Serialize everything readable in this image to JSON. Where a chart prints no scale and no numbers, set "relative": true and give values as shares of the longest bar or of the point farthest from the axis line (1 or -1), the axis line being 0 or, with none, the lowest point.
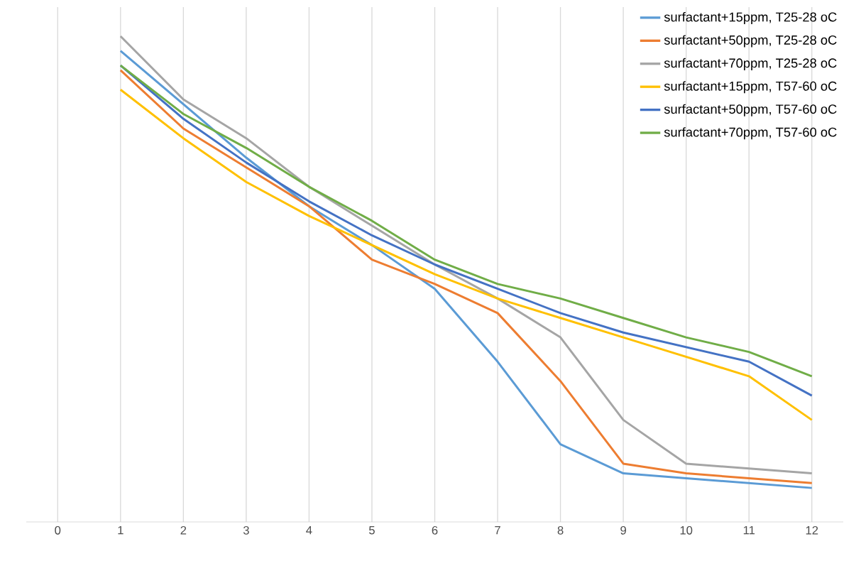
{
  "chart_data": {
    "type": "line",
    "relative": true,
    "x": [
      1,
      2,
      3,
      4,
      5,
      6,
      7,
      8,
      9,
      10,
      11,
      12
    ],
    "xlim": [
      -0.5,
      12.5
    ],
    "xticks": [
      0,
      1,
      2,
      3,
      4,
      5,
      6,
      7,
      8,
      9,
      10,
      11,
      12
    ],
    "grid": "x",
    "legend": "top right",
    "marker": "none",
    "line_style": "solid",
    "series": [
      {
        "name": "surfactant+15ppm, T25-28 oC",
        "color": "#5b9bd5",
        "values": [
          0.97,
          0.86,
          0.75,
          0.65,
          0.57,
          0.48,
          0.33,
          0.16,
          0.1,
          0.09,
          0.08,
          0.07
        ]
      },
      {
        "name": "surfactant+50ppm, T25-28 oC",
        "color": "#ed7d31",
        "values": [
          0.93,
          0.81,
          0.73,
          0.65,
          0.54,
          0.49,
          0.43,
          0.29,
          0.12,
          0.1,
          0.09,
          0.08
        ]
      },
      {
        "name": "surfactant+70ppm, T25-28 oC",
        "color": "#a5a5a5",
        "values": [
          1.0,
          0.87,
          0.79,
          0.69,
          0.61,
          0.53,
          0.46,
          0.38,
          0.21,
          0.12,
          0.11,
          0.1
        ]
      },
      {
        "name": "surfactant+15ppm, T57-60 oC",
        "color": "#ffc000",
        "values": [
          0.89,
          0.79,
          0.7,
          0.63,
          0.57,
          0.51,
          0.46,
          0.42,
          0.38,
          0.34,
          0.3,
          0.21
        ]
      },
      {
        "name": "surfactant+50ppm, T57-60 oC",
        "color": "#4472c4",
        "values": [
          0.94,
          0.83,
          0.74,
          0.66,
          0.59,
          0.53,
          0.48,
          0.43,
          0.39,
          0.36,
          0.33,
          0.26
        ]
      },
      {
        "name": "surfactant+70ppm, T57-60 oC",
        "color": "#70ad47",
        "values": [
          0.94,
          0.84,
          0.77,
          0.69,
          0.62,
          0.54,
          0.49,
          0.46,
          0.42,
          0.38,
          0.35,
          0.3
        ]
      }
    ]
  }
}
